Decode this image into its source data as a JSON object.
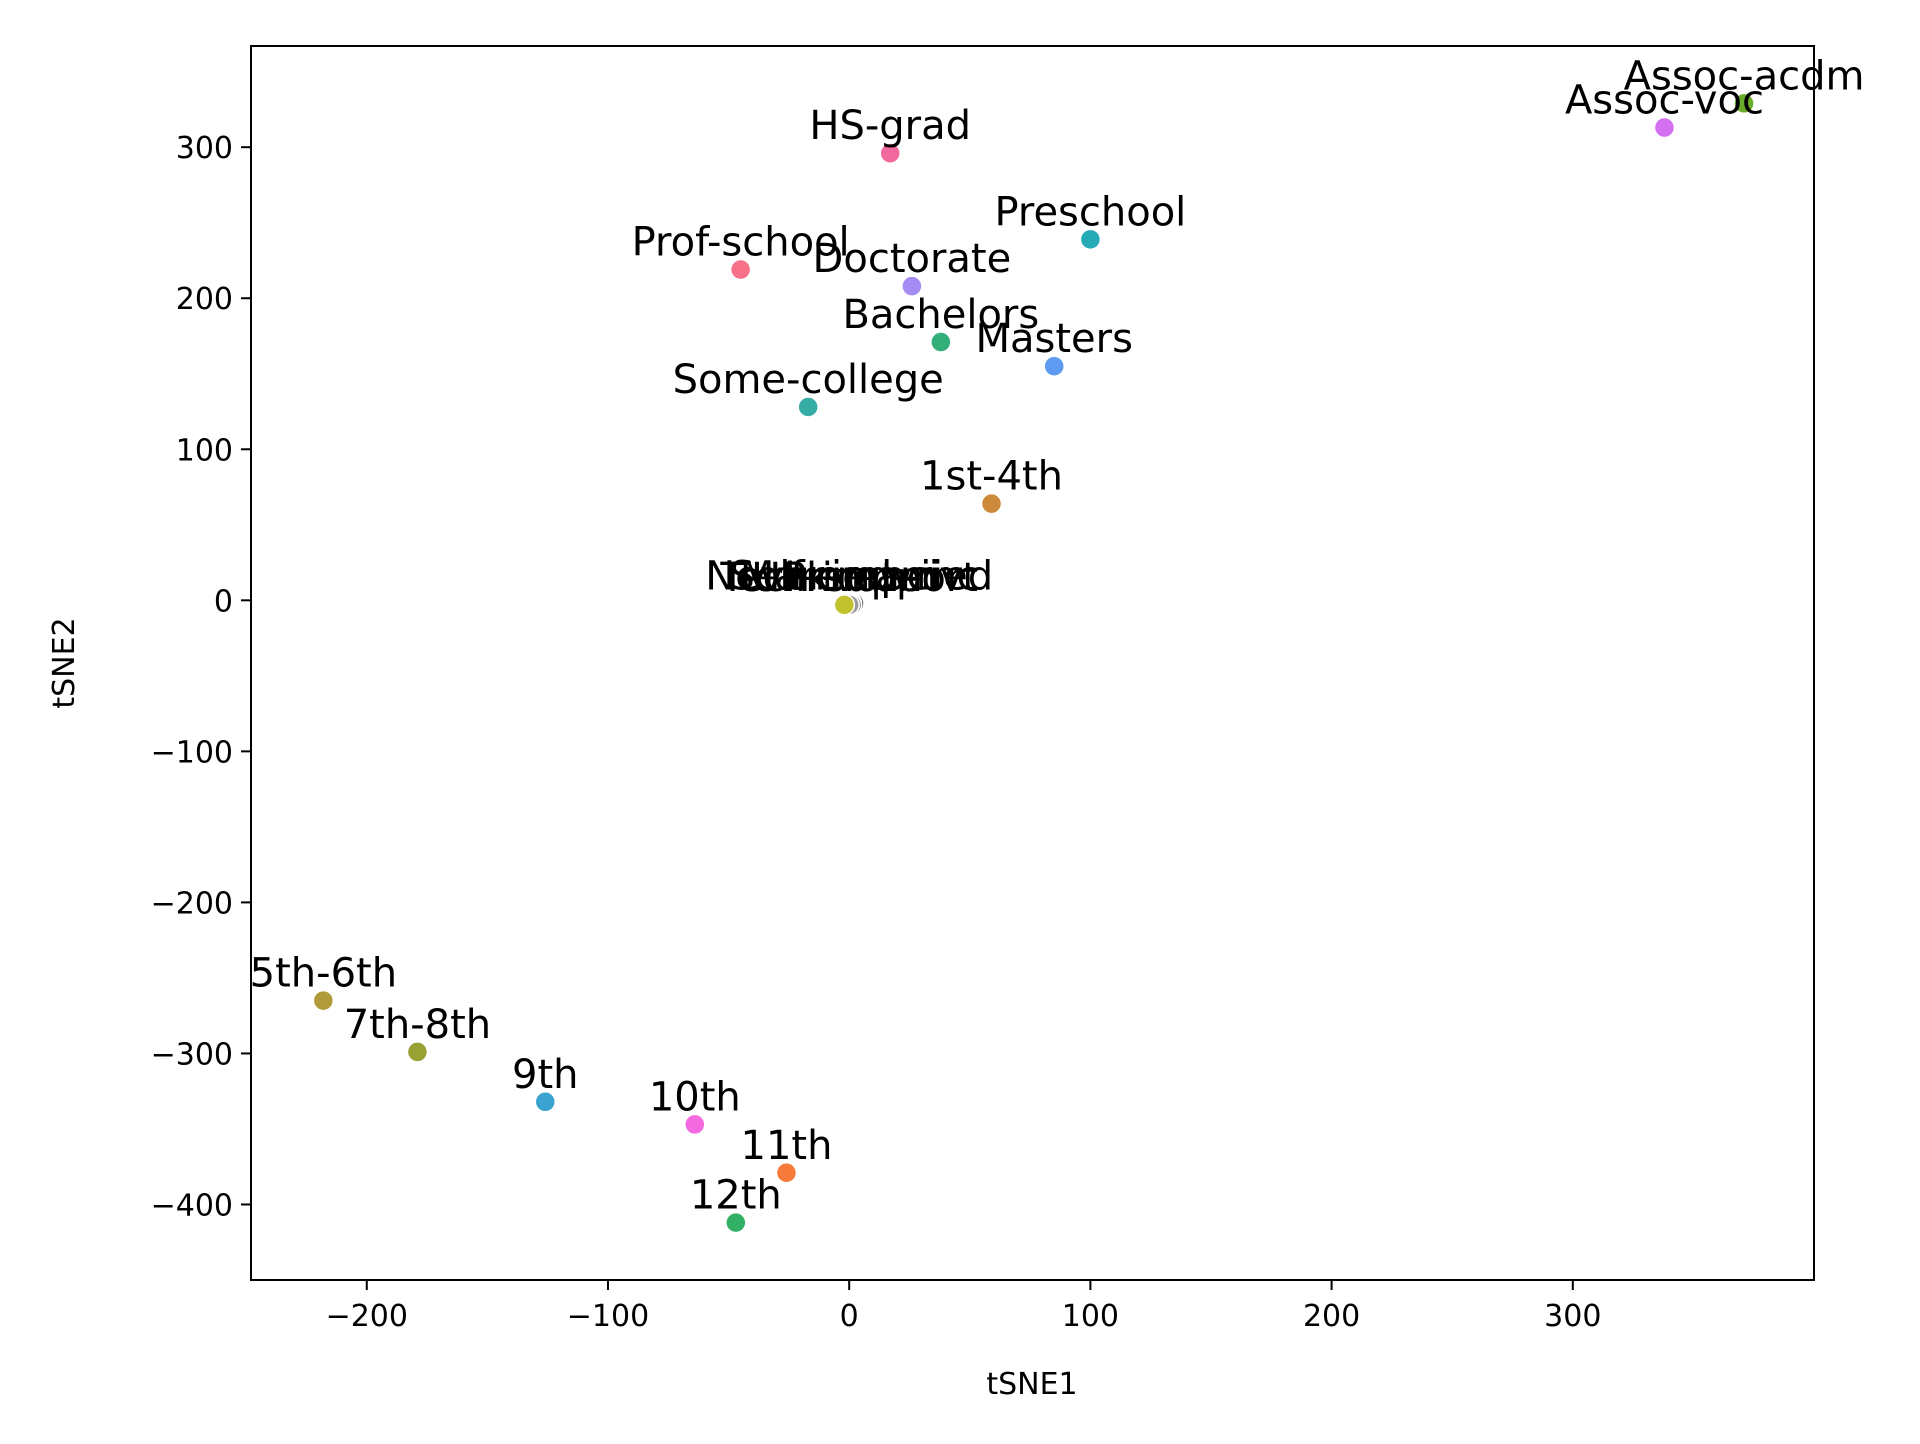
{
  "chart_data": {
    "type": "scatter",
    "xlabel": "tSNE1",
    "ylabel": "tSNE2",
    "xlim": [
      -248,
      400
    ],
    "ylim": [
      -450,
      367
    ],
    "xticks": [
      -200,
      -100,
      0,
      100,
      200,
      300
    ],
    "yticks": [
      -400,
      -300,
      -200,
      -100,
      0,
      100,
      200,
      300
    ],
    "grid": false,
    "points": [
      {
        "label": "Assoc-acdm",
        "x": 371,
        "y": 329,
        "color": "#6aad2a"
      },
      {
        "label": "Assoc-voc",
        "x": 338,
        "y": 313,
        "color": "#d36ff0"
      },
      {
        "label": "HS-grad",
        "x": 17,
        "y": 296,
        "color": "#f2699d"
      },
      {
        "label": "Preschool",
        "x": 100,
        "y": 239,
        "color": "#26aab6"
      },
      {
        "label": "Prof-school",
        "x": -45,
        "y": 219,
        "color": "#f77189"
      },
      {
        "label": "Doctorate",
        "x": 26,
        "y": 208,
        "color": "#a48cf4"
      },
      {
        "label": "Bachelors",
        "x": 38,
        "y": 171,
        "color": "#33b07a"
      },
      {
        "label": "Masters",
        "x": 85,
        "y": 155,
        "color": "#5d9cf0"
      },
      {
        "label": "Some-college",
        "x": -17,
        "y": 128,
        "color": "#36ada4"
      },
      {
        "label": "1st-4th",
        "x": 59,
        "y": 64,
        "color": "#cc8a3a"
      },
      {
        "label": "Self-emp-inc",
        "x": 2,
        "y": -2,
        "color": "#555555"
      },
      {
        "label": "Married-civ",
        "x": 1,
        "y": -2,
        "color": "#666666"
      },
      {
        "label": "Never-married",
        "x": 0,
        "y": -2,
        "color": "#777777"
      },
      {
        "label": "Private",
        "x": 1,
        "y": -3,
        "color": "#888888"
      },
      {
        "label": "Tech-support",
        "x": 0,
        "y": -3,
        "color": "#999999"
      },
      {
        "label": "Unknown",
        "x": -2,
        "y": -3,
        "color": "#c2c22f"
      },
      {
        "label": "5th-6th",
        "x": -218,
        "y": -265,
        "color": "#b19a3a"
      },
      {
        "label": "7th-8th",
        "x": -179,
        "y": -299,
        "color": "#97a232"
      },
      {
        "label": "9th",
        "x": -126,
        "y": -332,
        "color": "#3ba3cf"
      },
      {
        "label": "10th",
        "x": -64,
        "y": -347,
        "color": "#f569e0"
      },
      {
        "label": "11th",
        "x": -26,
        "y": -379,
        "color": "#f77a3a"
      },
      {
        "label": "12th",
        "x": -47,
        "y": -412,
        "color": "#32b166"
      }
    ]
  }
}
